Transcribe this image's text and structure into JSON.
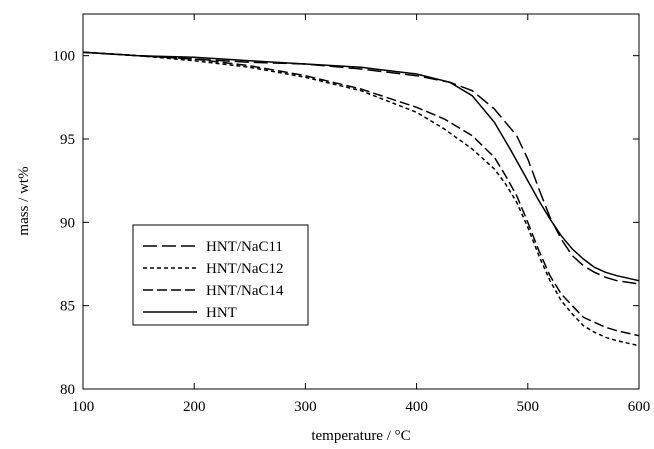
{
  "chart_data": {
    "type": "line",
    "xlabel": "temperature / °C",
    "ylabel": "mass / wt%",
    "xlim": [
      100,
      600
    ],
    "ylim": [
      80,
      102.5
    ],
    "xticks": [
      100,
      200,
      300,
      400,
      500,
      600
    ],
    "yticks": [
      80,
      85,
      90,
      95,
      100
    ],
    "grid": false,
    "legend_position": "lower-left",
    "series": [
      {
        "name": "HNT/NaC11",
        "style": "long-dash",
        "x": [
          100,
          150,
          200,
          250,
          300,
          350,
          400,
          430,
          450,
          470,
          490,
          500,
          510,
          520,
          530,
          540,
          550,
          560,
          570,
          580,
          600
        ],
        "y": [
          100.2,
          100.0,
          99.8,
          99.6,
          99.5,
          99.2,
          98.8,
          98.4,
          97.9,
          96.8,
          95.2,
          93.8,
          92.0,
          90.3,
          89.0,
          88.0,
          87.4,
          87.0,
          86.7,
          86.5,
          86.3
        ]
      },
      {
        "name": "HNT/NaC12",
        "style": "short-dash",
        "x": [
          100,
          150,
          200,
          250,
          300,
          350,
          400,
          425,
          450,
          470,
          480,
          490,
          500,
          510,
          520,
          530,
          540,
          550,
          560,
          570,
          580,
          600
        ],
        "y": [
          100.2,
          100.0,
          99.7,
          99.3,
          98.7,
          97.9,
          96.6,
          95.6,
          94.4,
          93.2,
          92.3,
          91.2,
          89.7,
          88.0,
          86.5,
          85.3,
          84.5,
          83.8,
          83.4,
          83.1,
          82.9,
          82.6
        ]
      },
      {
        "name": "HNT/NaC14",
        "style": "dash-dot",
        "x": [
          100,
          150,
          200,
          250,
          300,
          350,
          400,
          425,
          450,
          470,
          480,
          490,
          500,
          510,
          520,
          530,
          540,
          550,
          560,
          570,
          580,
          600
        ],
        "y": [
          100.2,
          100.0,
          99.8,
          99.4,
          98.8,
          98.0,
          96.9,
          96.2,
          95.2,
          93.9,
          92.8,
          91.6,
          90.0,
          88.3,
          86.8,
          85.7,
          85.0,
          84.3,
          84.0,
          83.7,
          83.5,
          83.2
        ]
      },
      {
        "name": "HNT",
        "style": "solid",
        "x": [
          100,
          150,
          200,
          250,
          300,
          350,
          400,
          430,
          450,
          470,
          485,
          500,
          510,
          520,
          530,
          540,
          550,
          560,
          570,
          580,
          600
        ],
        "y": [
          100.2,
          100.0,
          99.9,
          99.7,
          99.5,
          99.3,
          98.9,
          98.4,
          97.6,
          96.0,
          94.3,
          92.5,
          91.3,
          90.2,
          89.2,
          88.4,
          87.8,
          87.3,
          87.0,
          86.8,
          86.5
        ]
      }
    ]
  }
}
